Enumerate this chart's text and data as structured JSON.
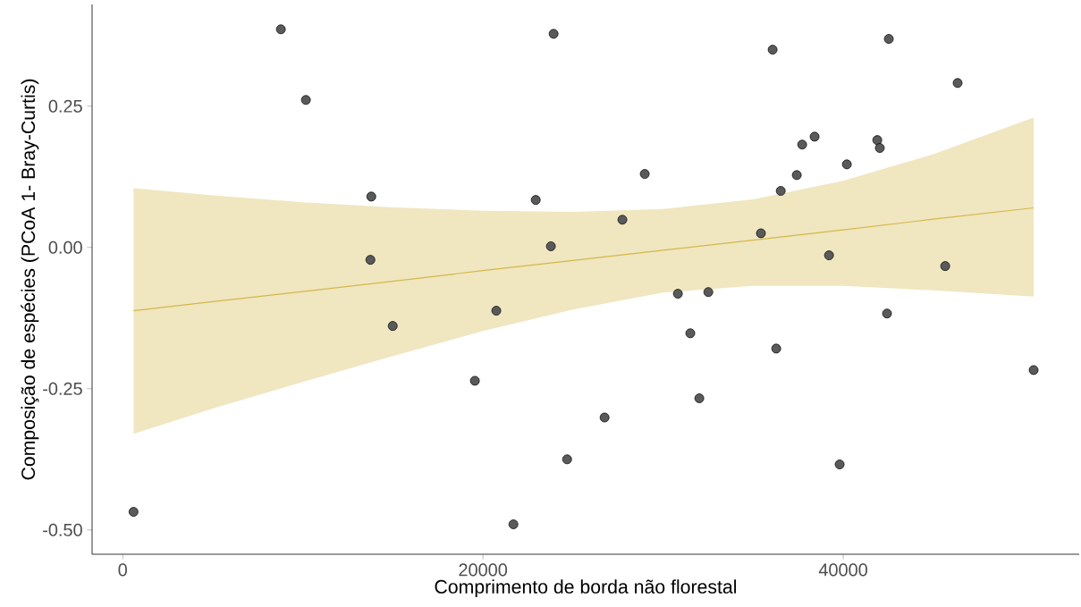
{
  "chart_data": {
    "type": "scatter",
    "xlabel": "Comprimento de borda não florestal",
    "ylabel": "Composição de espécies (PCoA 1- Bray-Curtis)",
    "xlim": [
      -1700,
      53100
    ],
    "ylim": [
      -0.543,
      0.43
    ],
    "xticks": [
      0,
      20000,
      40000
    ],
    "yticks": [
      {
        "value": -0.5,
        "label": "-0.50"
      },
      {
        "value": -0.25,
        "label": "-0.25"
      },
      {
        "value": 0,
        "label": "0.00"
      },
      {
        "value": 0.25,
        "label": "0.25"
      }
    ],
    "series": [
      {
        "type": "scatter",
        "marker": "circle",
        "color": "#5a5a5a",
        "x": [
          600,
          8780,
          10170,
          13800,
          13750,
          14990,
          19550,
          20740,
          21690,
          22930,
          23770,
          23920,
          24670,
          26750,
          27740,
          28980,
          30820,
          31510,
          32010,
          32510,
          35430,
          36080,
          36280,
          36530,
          37420,
          37720,
          38410,
          39210,
          39800,
          40200,
          41890,
          42030,
          42430,
          42530,
          45660,
          46350,
          50570
        ],
        "values": [
          -0.468,
          0.386,
          0.261,
          0.09,
          -0.022,
          -0.139,
          -0.236,
          -0.112,
          -0.49,
          0.084,
          0.002,
          0.378,
          -0.375,
          -0.301,
          0.049,
          0.13,
          -0.082,
          -0.152,
          -0.267,
          -0.079,
          0.025,
          0.35,
          -0.179,
          0.1,
          0.128,
          0.182,
          0.196,
          -0.014,
          -0.384,
          0.147,
          0.19,
          0.176,
          -0.117,
          0.369,
          -0.033,
          0.291,
          -0.217
        ]
      },
      {
        "type": "line",
        "marker": "none",
        "color": "#d4b84a",
        "x": [
          600,
          5000,
          10000,
          15000,
          20000,
          25000,
          30000,
          35000,
          40000,
          45000,
          50570
        ],
        "values": [
          -0.112,
          -0.096,
          -0.078,
          -0.06,
          -0.041,
          -0.023,
          -0.005,
          0.013,
          0.031,
          0.05,
          0.07
        ],
        "lower": [
          -0.33,
          -0.285,
          -0.238,
          -0.192,
          -0.148,
          -0.11,
          -0.08,
          -0.068,
          -0.068,
          -0.076,
          -0.087
        ],
        "upper": [
          0.105,
          0.092,
          0.08,
          0.071,
          0.065,
          0.063,
          0.068,
          0.085,
          0.118,
          0.165,
          0.23
        ]
      }
    ]
  }
}
